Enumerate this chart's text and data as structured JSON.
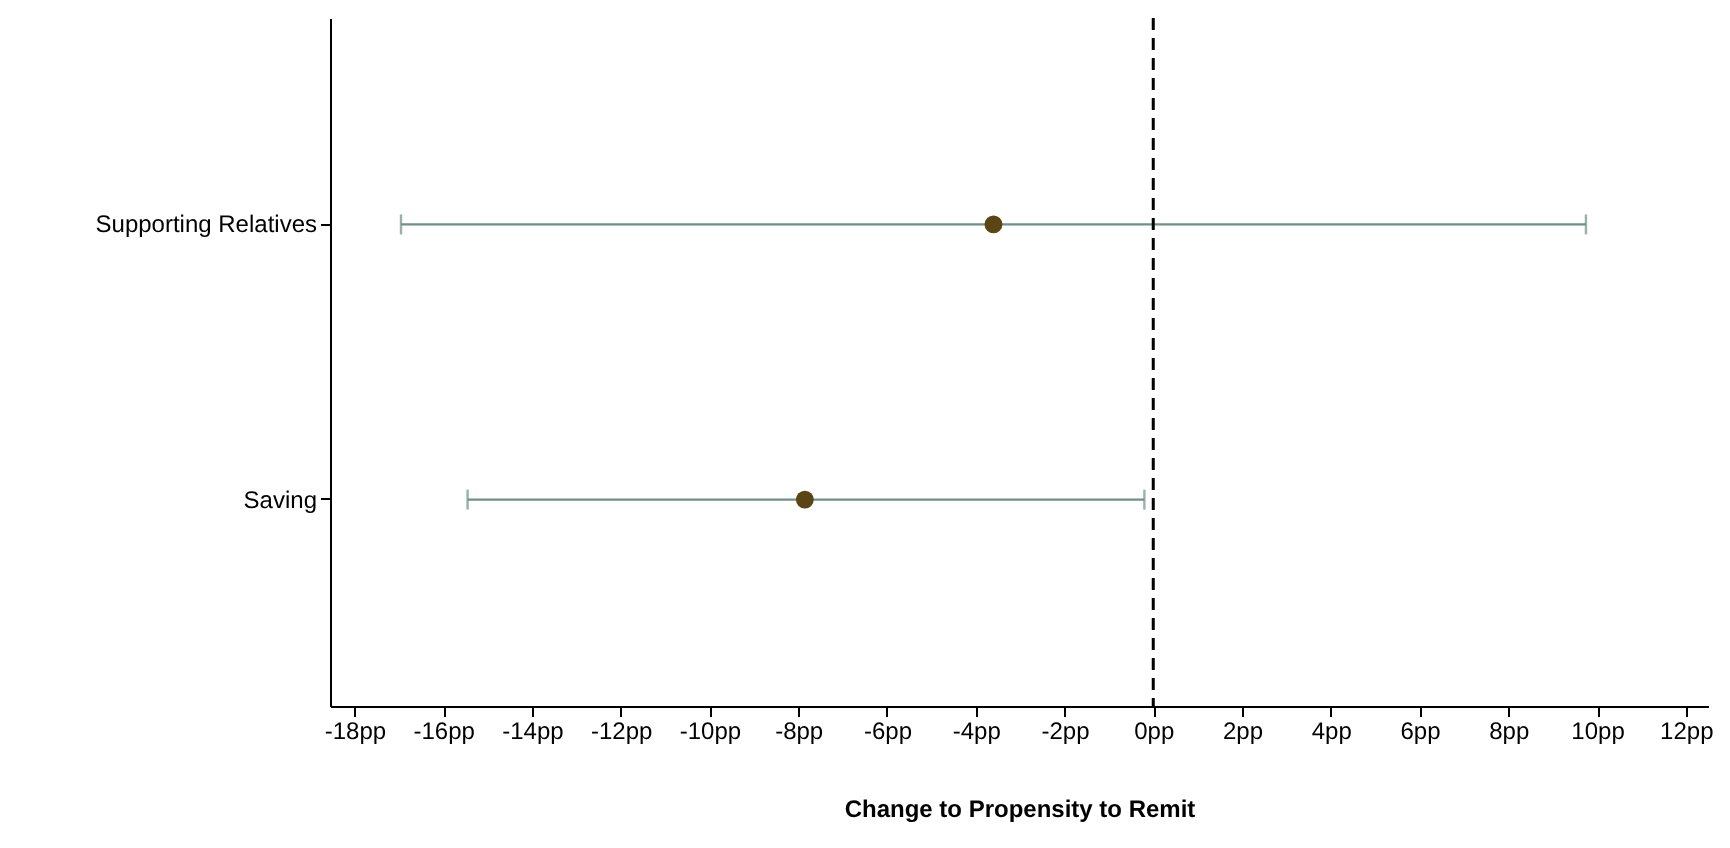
{
  "chart_data": {
    "type": "scatter",
    "orientation": "horizontal",
    "xlabel": "Change to Propensity to Remit",
    "categories": [
      "Supporting Relatives",
      "Saving"
    ],
    "series": [
      {
        "color": "#5b4514",
        "values": [
          -3.6,
          -7.85
        ],
        "errors": [
          [
            -16.95,
            9.75
          ],
          [
            -15.45,
            -0.2
          ]
        ]
      }
    ],
    "marker": "circle",
    "xlim": [
      -18.55,
      12.5
    ],
    "xticks": [
      {
        "value": -18,
        "label": "-18pp"
      },
      {
        "value": -16,
        "label": "-16pp"
      },
      {
        "value": -14,
        "label": "-14pp"
      },
      {
        "value": -12,
        "label": "-12pp"
      },
      {
        "value": -10,
        "label": "-10pp"
      },
      {
        "value": -8,
        "label": "-8pp"
      },
      {
        "value": -6,
        "label": "-6pp"
      },
      {
        "value": -4,
        "label": "-4pp"
      },
      {
        "value": -2,
        "label": "-2pp"
      },
      {
        "value": 0,
        "label": "0pp"
      },
      {
        "value": 2,
        "label": "2pp"
      },
      {
        "value": 4,
        "label": "4pp"
      },
      {
        "value": 6,
        "label": "6pp"
      },
      {
        "value": 8,
        "label": "8pp"
      },
      {
        "value": 10,
        "label": "10pp"
      },
      {
        "value": 12,
        "label": "12pp"
      }
    ],
    "ref_lines": [
      {
        "axis": "x",
        "value": 0,
        "color": "#000000",
        "line_style": "dashed"
      }
    ],
    "grid": false
  }
}
